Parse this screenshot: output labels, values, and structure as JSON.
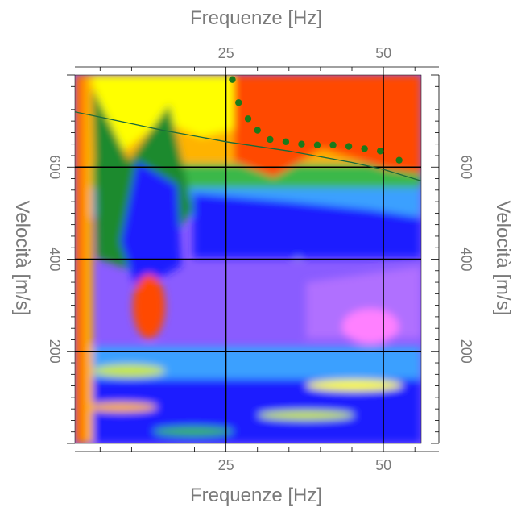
{
  "chart_data": {
    "type": "heatmap",
    "title": "",
    "xlabel": "Frequenze [Hz]",
    "ylabel": "Velocità [m/s]",
    "xlim": [
      1,
      56
    ],
    "ylim": [
      0,
      800
    ],
    "x_ticks": [
      {
        "value": 25,
        "label": "25"
      },
      {
        "value": 50,
        "label": "50"
      }
    ],
    "y_ticks": [
      {
        "value": 200,
        "label": "200"
      },
      {
        "value": 400,
        "label": "400"
      },
      {
        "value": 600,
        "label": "600"
      }
    ],
    "grid": true,
    "colormap": [
      "#b070ff",
      "#ff80ff",
      "#8a5cff",
      "#1f1fff",
      "#3aa0ff",
      "#7fd6e8",
      "#3ab84a",
      "#1e8a2e",
      "#c8e832",
      "#ffff00",
      "#ffb300",
      "#ff6a00",
      "#ff4a00",
      "#ff3a00"
    ],
    "dispersion_points": [
      {
        "x": 26,
        "y": 790
      },
      {
        "x": 27,
        "y": 740
      },
      {
        "x": 28.5,
        "y": 705
      },
      {
        "x": 30,
        "y": 680
      },
      {
        "x": 32,
        "y": 660
      },
      {
        "x": 34.5,
        "y": 655
      },
      {
        "x": 37,
        "y": 650
      },
      {
        "x": 39.5,
        "y": 648
      },
      {
        "x": 42,
        "y": 648
      },
      {
        "x": 44.5,
        "y": 645
      },
      {
        "x": 47,
        "y": 640
      },
      {
        "x": 49.5,
        "y": 635
      },
      {
        "x": 52.5,
        "y": 615
      }
    ],
    "model_curve": [
      {
        "x": 1,
        "y": 720
      },
      {
        "x": 15,
        "y": 680
      },
      {
        "x": 25,
        "y": 655
      },
      {
        "x": 35,
        "y": 635
      },
      {
        "x": 45,
        "y": 610
      },
      {
        "x": 50,
        "y": 595
      },
      {
        "x": 56,
        "y": 570
      }
    ],
    "colors": {
      "points": "#1a7a1a",
      "curve": "#1a6a3a",
      "grid": "#000000",
      "text": "#7a7a7a"
    }
  }
}
